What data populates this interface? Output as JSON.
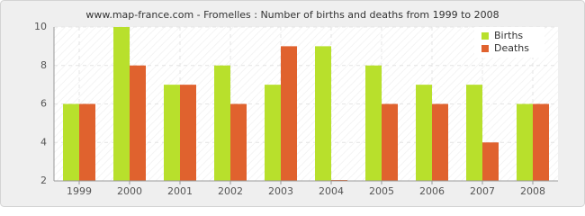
{
  "chart_data": {
    "type": "bar",
    "title": "www.map-france.com - Fromelles : Number of births and deaths from 1999 to 2008",
    "categories": [
      "1999",
      "2000",
      "2001",
      "2002",
      "2003",
      "2004",
      "2005",
      "2006",
      "2007",
      "2008"
    ],
    "series": [
      {
        "name": "Births",
        "color": "#b8e02c",
        "values": [
          6,
          10,
          7,
          8,
          7,
          9,
          8,
          7,
          7,
          6
        ]
      },
      {
        "name": "Deaths",
        "color": "#e0622e",
        "values": [
          6,
          8,
          7,
          6,
          9,
          2,
          6,
          6,
          4,
          6
        ]
      }
    ],
    "ylim": [
      2,
      10
    ],
    "yticks": [
      2,
      4,
      6,
      8,
      10
    ],
    "grid": true,
    "legend": "top-right"
  }
}
